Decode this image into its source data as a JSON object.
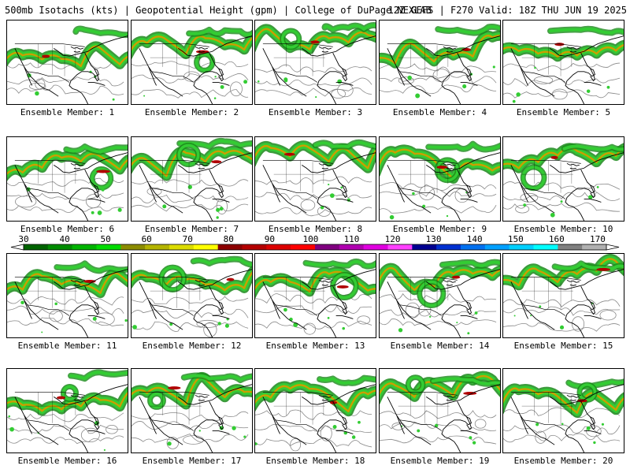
{
  "header": {
    "title_left": "500mb Isotachs (kts) | Geopotential Height (gpm) | College of DuPage NEXLAB",
    "title_right": "12Z GEFS | F270 Valid: 18Z THU JUN 19 2025"
  },
  "member_label_prefix": "Ensemble Member: ",
  "members": [
    1,
    2,
    3,
    4,
    5,
    6,
    7,
    8,
    9,
    10,
    11,
    12,
    13,
    14,
    15,
    16,
    17,
    18,
    19,
    20
  ],
  "colorbar": {
    "tick_labels": [
      "30",
      "40",
      "50",
      "60",
      "70",
      "80",
      "90",
      "100",
      "110",
      "120",
      "130",
      "140",
      "150",
      "160",
      "170"
    ],
    "colors": [
      "#006400",
      "#008c00",
      "#00b400",
      "#00dc00",
      "#8c8c00",
      "#b4b400",
      "#dcdc00",
      "#ffff00",
      "#8c0000",
      "#b40000",
      "#dc0000",
      "#ff0000",
      "#800080",
      "#b000b0",
      "#e000e0",
      "#ff40ff",
      "#000090",
      "#0030d0",
      "#0070f0",
      "#00a0ff",
      "#00d0ff",
      "#00ffff",
      "#808080",
      "#b0b0b0"
    ]
  },
  "colors": {
    "jet_dark": "#1a8a1a",
    "jet_light": "#33cc33",
    "jet_core": "#c8a000",
    "jet_max": "#b00000",
    "height_contour": "#888888",
    "coastline": "#000000"
  }
}
